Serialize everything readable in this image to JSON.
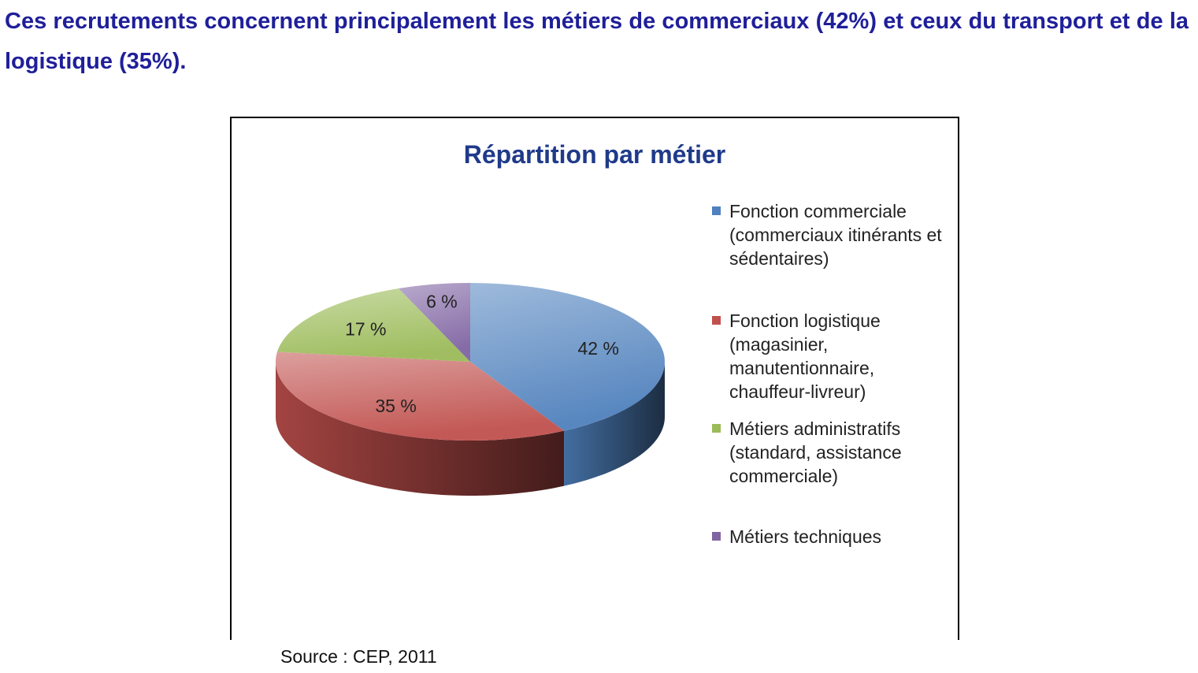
{
  "heading": "Ces recrutements concernent principalement les métiers de commerciaux (42%) et ceux du transport et de la logistique (35%).",
  "source": "Source : CEP, 2011",
  "chart_data": {
    "type": "pie",
    "title": "Répartition par métier",
    "legend_position": "right",
    "slices": [
      {
        "label": "Fonction commerciale (commerciaux itinérants et sédentaires)",
        "value": 42,
        "data_label": "42 %",
        "color": "#4f81bd"
      },
      {
        "label": "Fonction logistique (magasinier, manutentionnaire, chauffeur-livreur)",
        "value": 35,
        "data_label": "35 %",
        "color": "#c0504d"
      },
      {
        "label": "Métiers administratifs (standard, assistance commerciale)",
        "value": 17,
        "data_label": "17 %",
        "color": "#9bbb59"
      },
      {
        "label": "Métiers techniques",
        "value": 6,
        "data_label": "6 %",
        "color": "#8064a2"
      }
    ]
  }
}
